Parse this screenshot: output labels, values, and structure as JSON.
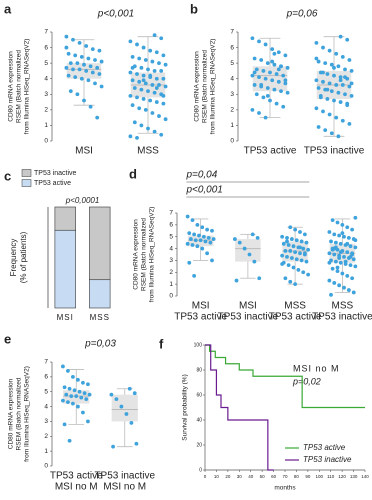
{
  "chart_data": [
    {
      "type": "box",
      "panel": "a",
      "title": "p<0,001",
      "ylabel": [
        "CD80 mRNA expression",
        "RSEM (Batch normalized",
        "from Illumina HiSeq_RNASeqV2)"
      ],
      "categories": [
        [
          "MSI"
        ],
        [
          "MSS"
        ]
      ],
      "ylim": [
        0,
        7
      ],
      "yticks": [
        0,
        1,
        2,
        3,
        4,
        5,
        6,
        7
      ],
      "color": "#3ea3dc",
      "box_color": "#e4e4e4",
      "boxes": [
        {
          "whislo": 2.3,
          "q1": 4.0,
          "med": 4.6,
          "q3": 5.0,
          "whishi": 6.5
        },
        {
          "whislo": 0.5,
          "q1": 2.8,
          "med": 3.6,
          "q3": 4.4,
          "whishi": 6.7
        }
      ],
      "points": [
        [
          6.7,
          6.5,
          6.3,
          6.1,
          5.9,
          5.8,
          5.6,
          5.5,
          5.4,
          5.3,
          5.2,
          5.1,
          5.0,
          5.0,
          4.9,
          4.8,
          4.7,
          4.7,
          4.6,
          4.6,
          4.5,
          4.4,
          4.3,
          4.2,
          4.1,
          4.0,
          3.9,
          3.7,
          3.5,
          3.2,
          3.0,
          2.6,
          2.2,
          1.5,
          6.0
        ],
        [
          6.8,
          6.6,
          6.4,
          6.2,
          6.0,
          5.8,
          5.7,
          5.5,
          5.4,
          5.3,
          5.2,
          5.1,
          5.0,
          4.9,
          4.8,
          4.7,
          4.6,
          4.5,
          4.5,
          4.4,
          4.3,
          4.2,
          4.1,
          4.0,
          4.0,
          3.9,
          3.8,
          3.7,
          3.6,
          3.6,
          3.5,
          3.4,
          3.3,
          3.2,
          3.1,
          3.0,
          2.9,
          2.8,
          2.7,
          2.6,
          2.5,
          2.4,
          2.3,
          2.1,
          2.0,
          1.8,
          1.6,
          1.4,
          1.2,
          1.0,
          0.8,
          0.6,
          0.4,
          0.3,
          0.2,
          3.9,
          4.2,
          3.4,
          2.9,
          4.7
        ]
      ]
    },
    {
      "type": "box",
      "panel": "b",
      "title": "p=0,06",
      "ylabel": [
        "CD80 mRNA expression",
        "RSEM (Batch normalized",
        "from Illumina HiSeq_RNASeqV2)"
      ],
      "categories": [
        [
          "TP53 active"
        ],
        [
          "TP53 inactive"
        ]
      ],
      "ylim": [
        0,
        7
      ],
      "yticks": [
        0,
        1,
        2,
        3,
        4,
        5,
        6,
        7
      ],
      "color": "#3ea3dc",
      "box_color": "#e4e4e4",
      "boxes": [
        {
          "whislo": 1.5,
          "q1": 3.2,
          "med": 4.2,
          "q3": 4.8,
          "whishi": 6.6
        },
        {
          "whislo": 0.3,
          "q1": 2.7,
          "med": 3.6,
          "q3": 4.5,
          "whishi": 6.7
        }
      ],
      "points": [
        [
          6.6,
          6.4,
          6.2,
          5.9,
          5.7,
          5.5,
          5.3,
          5.2,
          5.0,
          4.9,
          4.8,
          4.7,
          4.6,
          4.5,
          4.4,
          4.3,
          4.2,
          4.2,
          4.1,
          4.0,
          3.9,
          3.8,
          3.7,
          3.6,
          3.5,
          3.4,
          3.3,
          3.2,
          3.1,
          3.0,
          2.8,
          2.6,
          2.4,
          2.2,
          2.0,
          1.8,
          1.5,
          5.1,
          4.6,
          3.9,
          4.4,
          3.6,
          2.9,
          5.6,
          4.8
        ],
        [
          6.7,
          6.5,
          6.3,
          6.0,
          5.8,
          5.6,
          5.4,
          5.2,
          5.1,
          5.0,
          4.9,
          4.8,
          4.6,
          4.5,
          4.4,
          4.3,
          4.2,
          4.1,
          4.0,
          3.9,
          3.8,
          3.7,
          3.6,
          3.6,
          3.5,
          3.4,
          3.3,
          3.2,
          3.1,
          3.0,
          2.9,
          2.8,
          2.7,
          2.6,
          2.5,
          2.3,
          2.1,
          1.9,
          1.7,
          1.5,
          1.3,
          1.1,
          0.9,
          0.7,
          0.5,
          0.3,
          4.1,
          3.7,
          2.9,
          3.3,
          4.7,
          3.9,
          2.4,
          5.3,
          4.4
        ]
      ]
    },
    {
      "type": "stacked",
      "panel": "c",
      "title": "p<0,0001",
      "ylabel": [
        "Frequency",
        "(% of patients)"
      ],
      "categories": [
        "MSI",
        "MSS"
      ],
      "ylim": [
        0,
        100
      ],
      "series": [
        {
          "name": "TP53 inactive",
          "color": "#c8c8c8",
          "values": [
            23,
            72
          ]
        },
        {
          "name": "TP53 active",
          "color": "#c7dcf2",
          "values": [
            77,
            28
          ]
        }
      ]
    },
    {
      "type": "box",
      "panel": "d",
      "ylabel": [
        "CD80 mRNA expression",
        "RSEM (Batch normalized",
        "from Illumina HiSeq_RNASeqV2)"
      ],
      "comparisons": [
        {
          "label": "p=0,04",
          "span": [
            0,
            2
          ]
        },
        {
          "label": "p<0,001",
          "span": [
            0,
            2
          ]
        }
      ],
      "categories": [
        [
          "MSI",
          "TP53 active"
        ],
        [
          "MSI",
          "TP53 inactive"
        ],
        [
          "MSS",
          "TP53 active"
        ],
        [
          "MSS",
          "TP53 inactive"
        ]
      ],
      "ylim": [
        0,
        7
      ],
      "yticks": [
        0,
        1,
        2,
        3,
        4,
        5,
        6,
        7
      ],
      "color": "#3ea3dc",
      "box_color": "#e4e4e4",
      "boxes": [
        {
          "whislo": 3.0,
          "q1": 4.2,
          "med": 4.7,
          "q3": 5.1,
          "whishi": 6.5
        },
        {
          "whislo": 1.5,
          "q1": 2.9,
          "med": 4.0,
          "q3": 4.8,
          "whishi": 5.2
        },
        {
          "whislo": 1.0,
          "q1": 2.9,
          "med": 3.8,
          "q3": 4.6,
          "whishi": 5.8
        },
        {
          "whislo": 0.3,
          "q1": 2.8,
          "med": 3.6,
          "q3": 4.4,
          "whishi": 6.5
        }
      ],
      "points": [
        [
          6.7,
          6.4,
          6.0,
          5.8,
          5.6,
          5.5,
          5.3,
          5.2,
          5.1,
          5.0,
          4.9,
          4.8,
          4.8,
          4.7,
          4.7,
          4.6,
          4.5,
          4.4,
          4.3,
          4.2,
          4.0,
          3.6,
          3.0,
          2.8,
          1.7
        ],
        [
          5.2,
          4.9,
          4.8,
          4.5,
          4.0,
          3.5,
          2.9,
          1.5,
          1.3
        ],
        [
          5.8,
          5.6,
          5.4,
          5.2,
          5.0,
          4.9,
          4.8,
          4.7,
          4.6,
          4.5,
          4.4,
          4.3,
          4.2,
          4.1,
          4.0,
          3.9,
          3.8,
          3.8,
          3.7,
          3.6,
          3.5,
          3.4,
          3.3,
          3.2,
          3.1,
          3.0,
          2.9,
          2.8,
          2.6,
          2.4,
          2.2,
          2.0,
          1.8,
          1.5,
          1.2,
          1.0,
          4.1,
          3.6,
          2.7,
          4.6
        ],
        [
          6.6,
          6.4,
          6.2,
          6.0,
          5.8,
          5.6,
          5.4,
          5.2,
          5.1,
          5.0,
          4.9,
          4.8,
          4.6,
          4.5,
          4.4,
          4.3,
          4.2,
          4.1,
          4.0,
          3.9,
          3.8,
          3.7,
          3.6,
          3.6,
          3.5,
          3.4,
          3.3,
          3.2,
          3.1,
          3.0,
          2.9,
          2.8,
          2.7,
          2.6,
          2.5,
          2.3,
          2.1,
          1.9,
          1.7,
          1.5,
          1.3,
          1.1,
          0.9,
          0.7,
          0.5,
          0.3,
          0.1,
          4.1,
          3.7,
          2.9,
          3.3,
          4.7,
          3.9,
          2.4,
          5.3,
          4.4,
          3.5,
          2.8,
          4.0,
          3.2
        ]
      ]
    },
    {
      "type": "box",
      "panel": "e",
      "title": "p=0,03",
      "ylabel": [
        "CD80 mRNA expression",
        "RSEM (Batch normalized",
        "from Illumina HiSeq_RNASeqV2)"
      ],
      "categories": [
        [
          "TP53 active",
          "MSI no M"
        ],
        [
          "TP53 inactive",
          "MSI no M"
        ]
      ],
      "ylim": [
        0,
        7
      ],
      "yticks": [
        0,
        1,
        2,
        3,
        4,
        5,
        6,
        7
      ],
      "color": "#3ea3dc",
      "box_color": "#e4e4e4",
      "boxes": [
        {
          "whislo": 2.8,
          "q1": 4.2,
          "med": 4.7,
          "q3": 5.1,
          "whishi": 6.5
        },
        {
          "whislo": 1.3,
          "q1": 3.0,
          "med": 3.8,
          "q3": 4.8,
          "whishi": 5.2
        }
      ],
      "points": [
        [
          6.7,
          6.4,
          6.0,
          5.8,
          5.6,
          5.5,
          5.3,
          5.2,
          5.1,
          5.0,
          4.9,
          4.8,
          4.8,
          4.7,
          4.7,
          4.6,
          4.5,
          4.4,
          4.3,
          4.2,
          4.0,
          3.6,
          3.0,
          2.8,
          1.7
        ],
        [
          5.2,
          4.9,
          4.8,
          4.5,
          4.0,
          3.5,
          2.9,
          1.5,
          1.3
        ]
      ]
    },
    {
      "type": "line",
      "panel": "f",
      "ylabel": "Survival probability (%)",
      "xlabel": "months",
      "annotations": [
        "MSI no M",
        "p=0,02"
      ],
      "xlim": [
        0,
        140
      ],
      "xticks": [
        0,
        10,
        20,
        30,
        40,
        50,
        60,
        70,
        80,
        90,
        100,
        110,
        120,
        130,
        140
      ],
      "ylim": [
        0,
        100
      ],
      "yticks": [
        0,
        20,
        40,
        60,
        80,
        100
      ],
      "series": [
        {
          "name": "TP53 active",
          "color": "#3aa935",
          "x": [
            0,
            4,
            4,
            9,
            9,
            18,
            18,
            30,
            30,
            42,
            42,
            85,
            85,
            140
          ],
          "values": [
            100,
            100,
            95,
            95,
            90,
            90,
            85,
            85,
            80,
            80,
            75,
            75,
            50,
            50
          ]
        },
        {
          "name": "TP53 inactive",
          "color": "#6a1b8f",
          "x": [
            0,
            5,
            5,
            10,
            10,
            14,
            14,
            20,
            20,
            55,
            55,
            60
          ],
          "values": [
            100,
            100,
            80,
            80,
            60,
            60,
            50,
            50,
            40,
            40,
            0,
            0
          ]
        }
      ]
    }
  ]
}
